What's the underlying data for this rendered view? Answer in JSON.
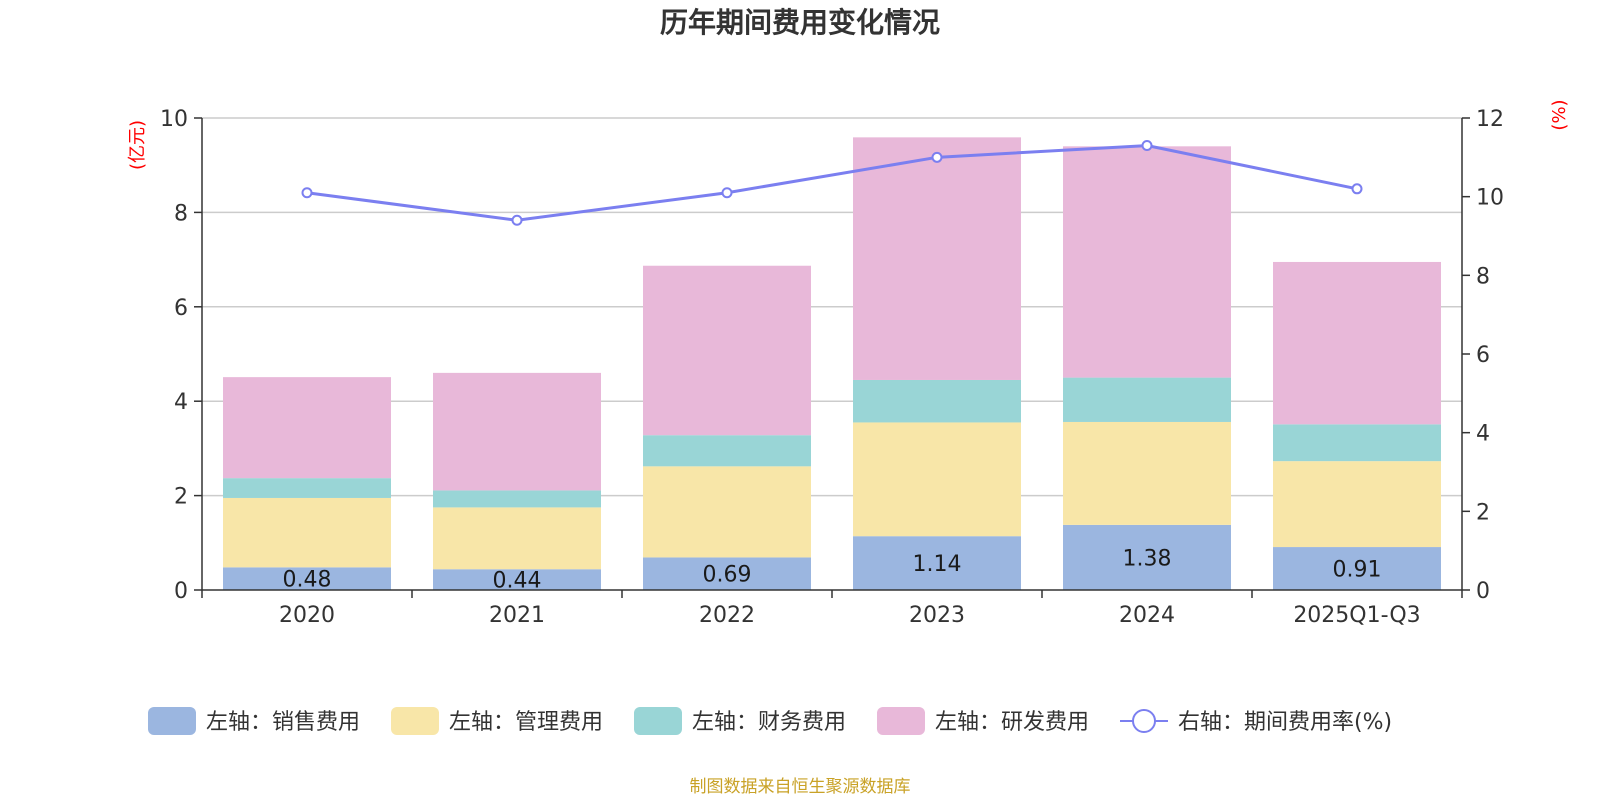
{
  "chart_data": {
    "type": "bar",
    "stacked": true,
    "title": "历年期间费用变化情况",
    "categories": [
      "2020",
      "2021",
      "2022",
      "2023",
      "2024",
      "2025Q1-Q3"
    ],
    "left_axis": {
      "unit": "(亿元)",
      "ylim": [
        0,
        10
      ],
      "ticks": [
        "0",
        "2",
        "4",
        "6",
        "8",
        "10"
      ]
    },
    "right_axis": {
      "unit": "(%)",
      "ylim": [
        0,
        12
      ],
      "ticks": [
        "0",
        "2",
        "4",
        "6",
        "8",
        "10",
        "12"
      ]
    },
    "series": [
      {
        "name": "左轴：销售费用",
        "axis": "left",
        "color": "#9bb6e0",
        "values": [
          0.48,
          0.44,
          0.69,
          1.14,
          1.38,
          0.91
        ],
        "labels": [
          "0.48",
          "0.44",
          "0.69",
          "1.14",
          "1.38",
          "0.91"
        ]
      },
      {
        "name": "左轴：管理费用",
        "axis": "left",
        "color": "#f8e6a8",
        "values": [
          1.47,
          1.31,
          1.93,
          2.41,
          2.18,
          1.82
        ]
      },
      {
        "name": "左轴：财务费用",
        "axis": "left",
        "color": "#99d5d6",
        "values": [
          0.42,
          0.36,
          0.66,
          0.9,
          0.94,
          0.78
        ]
      },
      {
        "name": "左轴：研发费用",
        "axis": "left",
        "color": "#e8b8d9",
        "values": [
          2.14,
          2.49,
          3.59,
          5.14,
          4.9,
          3.44
        ]
      }
    ],
    "line": {
      "name": "右轴：期间费用率(%)",
      "axis": "right",
      "color": "#7b7ff0",
      "values": [
        10.1,
        9.4,
        10.1,
        11.0,
        11.3,
        10.2
      ]
    },
    "source": "制图数据来自恒生聚源数据库"
  }
}
